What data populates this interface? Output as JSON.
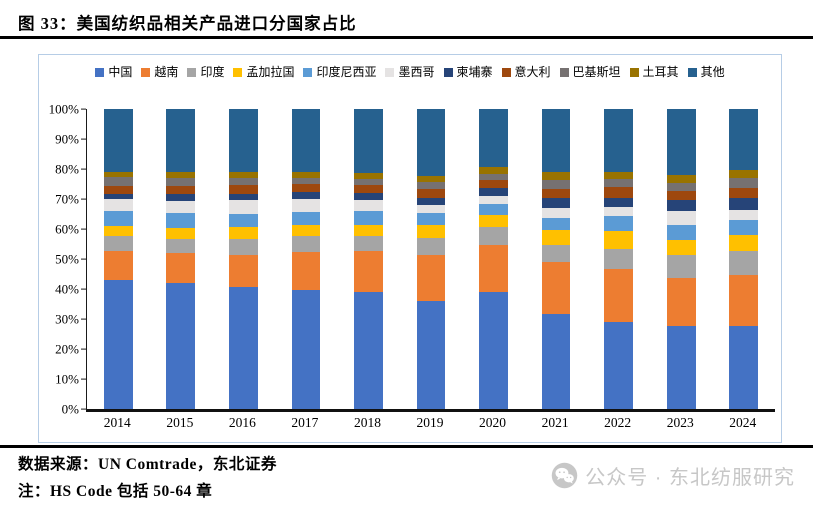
{
  "title": "图 33：美国纺织品相关产品进口分国家占比",
  "footer": {
    "source": "数据来源：UN Comtrade，东北证券",
    "note": "注：HS Code 包括 50-64 章",
    "watermark": "公众号 · 东北纺服研究"
  },
  "chart_data": {
    "type": "bar",
    "stacked": true,
    "percent_stacked": true,
    "grid": false,
    "legend_position": "top",
    "ylim": [
      0,
      100
    ],
    "y_ticks": [
      "0%",
      "10%",
      "20%",
      "30%",
      "40%",
      "50%",
      "60%",
      "70%",
      "80%",
      "90%",
      "100%"
    ],
    "categories": [
      "2014",
      "2015",
      "2016",
      "2017",
      "2018",
      "2019",
      "2020",
      "2021",
      "2022",
      "2023",
      "2024"
    ],
    "series": [
      {
        "name": "中国",
        "color": "#4472C4",
        "values": [
          43.0,
          42.0,
          40.5,
          39.5,
          39.0,
          36.0,
          39.0,
          31.5,
          29.0,
          27.5,
          27.5
        ]
      },
      {
        "name": "越南",
        "color": "#ED7D31",
        "values": [
          9.5,
          10.0,
          10.9,
          12.7,
          13.5,
          15.4,
          15.5,
          17.5,
          17.7,
          16.3,
          17.2
        ]
      },
      {
        "name": "印度",
        "color": "#A5A5A5",
        "values": [
          5.0,
          4.7,
          5.3,
          5.3,
          5.3,
          5.6,
          6.0,
          5.7,
          6.7,
          7.6,
          7.8
        ]
      },
      {
        "name": "孟加拉国",
        "color": "#FFC000",
        "values": [
          3.5,
          3.6,
          3.8,
          3.7,
          3.6,
          4.2,
          4.3,
          4.8,
          5.8,
          5.0,
          5.6
        ]
      },
      {
        "name": "印度尼西亚",
        "color": "#5B9BD5",
        "values": [
          5.0,
          5.0,
          4.5,
          4.4,
          4.5,
          4.1,
          3.5,
          4.2,
          5.0,
          4.8,
          5.0
        ]
      },
      {
        "name": "墨西哥",
        "color": "#E5E3E3",
        "values": [
          4.0,
          3.9,
          4.5,
          4.4,
          3.7,
          2.8,
          2.6,
          3.3,
          3.0,
          4.7,
          3.3
        ]
      },
      {
        "name": "柬埔寨",
        "color": "#264478",
        "values": [
          1.5,
          2.3,
          2.2,
          2.3,
          2.4,
          2.2,
          2.6,
          3.3,
          3.1,
          3.6,
          3.9
        ]
      },
      {
        "name": "意大利",
        "color": "#9E480E",
        "values": [
          2.7,
          2.7,
          2.9,
          2.7,
          2.8,
          3.0,
          2.7,
          3.2,
          3.6,
          3.3,
          3.4
        ]
      },
      {
        "name": "巴基斯坦",
        "color": "#767171",
        "values": [
          3.1,
          2.8,
          2.4,
          2.0,
          1.9,
          2.3,
          2.2,
          3.0,
          2.9,
          2.6,
          3.3
        ]
      },
      {
        "name": "土耳其",
        "color": "#997300",
        "values": [
          1.7,
          1.9,
          2.0,
          1.9,
          2.0,
          2.0,
          2.2,
          2.5,
          2.2,
          2.5,
          2.6
        ]
      },
      {
        "name": "其他",
        "color": "#26618F",
        "values": [
          21.0,
          21.1,
          21.0,
          21.1,
          21.3,
          22.4,
          19.4,
          21.0,
          21.0,
          22.1,
          20.4
        ]
      }
    ]
  }
}
